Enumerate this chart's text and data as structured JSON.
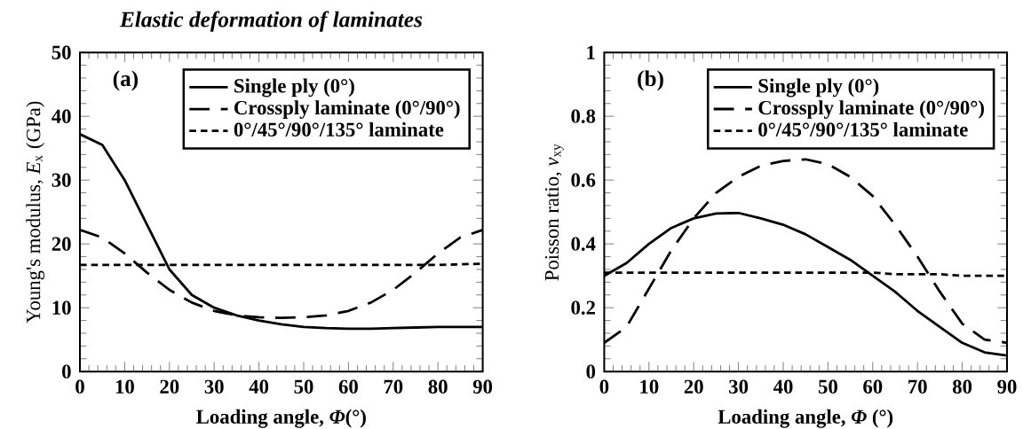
{
  "chart_data": [
    {
      "type": "line",
      "title": "Elastic deformation of laminates",
      "annotations": [
        "(a)"
      ],
      "xlabel": "Loading angle, *Φ*(°)",
      "ylabel": "Young's modulus, *E*$_{x}$ (GPa)",
      "x": [
        0,
        5,
        10,
        15,
        20,
        25,
        30,
        35,
        40,
        45,
        50,
        55,
        60,
        65,
        70,
        75,
        80,
        85,
        90
      ],
      "xlim": [
        0,
        90
      ],
      "xticks": [
        0,
        10,
        20,
        30,
        40,
        50,
        60,
        70,
        80,
        90
      ],
      "ylim": [
        0,
        50
      ],
      "yticks": [
        0,
        10,
        20,
        30,
        40,
        50
      ],
      "legend": "top right",
      "grid": false,
      "series": [
        {
          "name": "Single ply (0°)",
          "color": "#000000",
          "line_style": "solid",
          "values": [
            37.2,
            35.5,
            30,
            23,
            16,
            12,
            10,
            8.8,
            8,
            7.4,
            7,
            6.8,
            6.7,
            6.7,
            6.8,
            6.9,
            7,
            7,
            7
          ]
        },
        {
          "name": "Crossply laminate (0°/90°)",
          "color": "#000000",
          "line_style": "dashed",
          "values": [
            22.2,
            21,
            18.5,
            15.5,
            12.8,
            10.8,
            9.5,
            8.8,
            8.5,
            8.4,
            8.5,
            8.8,
            9.5,
            10.8,
            12.8,
            15.5,
            18.5,
            21,
            22.2
          ]
        },
        {
          "name": "0°/45°/90°/135° laminate",
          "color": "#000000",
          "line_style": "dotted",
          "values": [
            16.7,
            16.7,
            16.7,
            16.7,
            16.7,
            16.7,
            16.7,
            16.7,
            16.7,
            16.7,
            16.7,
            16.7,
            16.7,
            16.7,
            16.7,
            16.7,
            16.7,
            16.8,
            16.9
          ]
        }
      ]
    },
    {
      "type": "line",
      "annotations": [
        "(b)"
      ],
      "xlabel": "Loading angle, *Φ* (°)",
      "ylabel": "Poisson ratio, *ν*$_{xy}$",
      "x": [
        0,
        5,
        10,
        15,
        20,
        25,
        30,
        35,
        40,
        45,
        50,
        55,
        60,
        65,
        70,
        75,
        80,
        85,
        90
      ],
      "xlim": [
        0,
        90
      ],
      "xticks": [
        0,
        10,
        20,
        30,
        40,
        50,
        60,
        70,
        80,
        90
      ],
      "ylim": [
        0,
        1
      ],
      "yticks": [
        0,
        0.2,
        0.4,
        0.6,
        0.8,
        1
      ],
      "legend": "top right",
      "grid": false,
      "series": [
        {
          "name": "Single ply (0°)",
          "color": "#000000",
          "line_style": "solid",
          "values": [
            0.3,
            0.34,
            0.4,
            0.45,
            0.48,
            0.495,
            0.497,
            0.48,
            0.46,
            0.43,
            0.39,
            0.35,
            0.3,
            0.25,
            0.19,
            0.14,
            0.09,
            0.06,
            0.05
          ]
        },
        {
          "name": "Crossply laminate (0°/90°)",
          "color": "#000000",
          "line_style": "dashed",
          "values": [
            0.09,
            0.14,
            0.26,
            0.38,
            0.48,
            0.56,
            0.61,
            0.645,
            0.66,
            0.665,
            0.65,
            0.61,
            0.55,
            0.46,
            0.36,
            0.25,
            0.15,
            0.1,
            0.09
          ]
        },
        {
          "name": "0°/45°/90°/135° laminate",
          "color": "#000000",
          "line_style": "dotted",
          "values": [
            0.31,
            0.31,
            0.31,
            0.31,
            0.31,
            0.31,
            0.31,
            0.31,
            0.31,
            0.31,
            0.31,
            0.31,
            0.31,
            0.305,
            0.305,
            0.305,
            0.3,
            0.3,
            0.3
          ]
        }
      ]
    }
  ]
}
